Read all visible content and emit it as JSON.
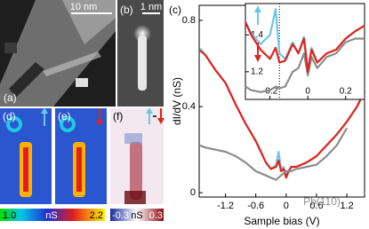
{
  "panels": {
    "a": {
      "label": "(a)",
      "scale": "10 nm"
    },
    "b": {
      "label": "(b)",
      "scale": "1 nm"
    },
    "c": {
      "label": "(c)"
    },
    "d": {
      "label": "(d)"
    },
    "e": {
      "label": "(e)"
    },
    "f": {
      "label": "(f)"
    },
    "colorbar_1": {
      "min": "1.0",
      "unit": "nS",
      "max": "2.2"
    },
    "colorbar_2": {
      "min": "-0.3",
      "unit": "nS",
      "max": "0.3"
    }
  },
  "chart_data": [
    {
      "type": "line",
      "xlabel": "Sample bias (V)",
      "ylabel": "dI/dV (nS)",
      "annotation": "Pb(110)",
      "x": [
        -1.7,
        -1.6,
        -1.4,
        -1.2,
        -1.0,
        -0.8,
        -0.6,
        -0.4,
        -0.3,
        -0.2,
        -0.15,
        -0.1,
        -0.05,
        0,
        0.05,
        0.1,
        0.2,
        0.4,
        0.6,
        0.8,
        1.0,
        1.2,
        1.4,
        1.55
      ],
      "series": [
        {
          "color": "#6ec6ea",
          "values": [
            0.67,
            0.64,
            0.57,
            0.51,
            0.41,
            0.32,
            0.24,
            0.14,
            0.11,
            0.13,
            0.19,
            0.11,
            0.12,
            0.08,
            0.1,
            0.12,
            0.12,
            0.14,
            0.17,
            0.22,
            0.27,
            0.33,
            0.4,
            0.47
          ]
        },
        {
          "color": "#e2231a",
          "values": [
            0.66,
            0.64,
            0.57,
            0.51,
            0.41,
            0.32,
            0.24,
            0.14,
            0.11,
            0.12,
            0.15,
            0.1,
            0.11,
            0.07,
            0.1,
            0.12,
            0.12,
            0.14,
            0.17,
            0.22,
            0.27,
            0.33,
            0.4,
            0.47
          ]
        },
        {
          "color": "#8c8c8c",
          "values": [
            0.22,
            0.21,
            0.2,
            0.19,
            0.17,
            0.14,
            0.1,
            0.08,
            0.07,
            0.06,
            0.07,
            0.08,
            0.09,
            0.1,
            0.1,
            0.1,
            0.11,
            0.12,
            0.13,
            0.17,
            0.22,
            0.3,
            null,
            null
          ]
        }
      ],
      "xlim": [
        -1.72,
        1.55
      ],
      "xticks": [
        -1.2,
        -0.6,
        0,
        0.6,
        1.2
      ],
      "ylim": [
        -0.02,
        0.87
      ],
      "yticks": [
        0,
        0.4,
        0.8
      ]
    },
    {
      "type": "line",
      "x": [
        -0.33,
        -0.3,
        -0.25,
        -0.2,
        -0.17,
        -0.15,
        -0.12,
        -0.08,
        -0.05,
        -0.02,
        0,
        0.02,
        0.05,
        0.1,
        0.15,
        0.2,
        0.25,
        0.3
      ],
      "series": [
        {
          "color": "#8c8c8c",
          "values": [
            1.12,
            1.1,
            1.09,
            1.1,
            1.12,
            1.11,
            1.12,
            1.2,
            1.22,
            1.3,
            1.18,
            1.28,
            1.22,
            1.28,
            1.3,
            1.36,
            1.38,
            1.38
          ]
        },
        {
          "color": "#6ec6ea",
          "values": [
            1.47,
            1.41,
            1.35,
            1.4,
            1.54,
            1.3,
            1.27,
            1.36,
            1.3,
            1.39,
            1.21,
            1.33,
            1.25,
            1.3,
            1.32,
            1.38,
            1.42,
            1.45
          ]
        },
        {
          "color": "#e2231a",
          "values": [
            1.47,
            1.4,
            1.32,
            1.27,
            1.33,
            1.25,
            1.26,
            1.35,
            1.3,
            1.38,
            1.2,
            1.32,
            1.25,
            1.3,
            1.32,
            1.38,
            1.42,
            1.45
          ]
        }
      ],
      "vline": -0.15,
      "xlim": [
        -0.33,
        0.3
      ],
      "xticks": [
        -0.2,
        0,
        0.2
      ],
      "ylim": [
        1.05,
        1.57
      ],
      "yticks": [
        1.2,
        1.4
      ]
    }
  ]
}
